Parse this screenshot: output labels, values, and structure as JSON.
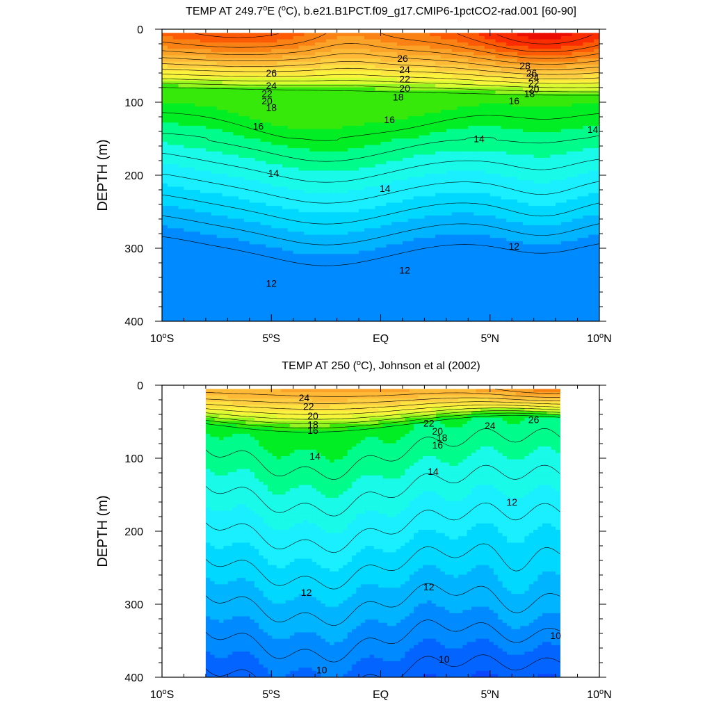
{
  "chart_data": [
    {
      "type": "contour",
      "title_main": "TEMP AT 249.7",
      "title_deg": "o",
      "title_mid": "E (",
      "title_unit_deg": "o",
      "title_rest": "C), b.e21.B1PCT.f09_g17.CMIP6-1pctCO2-rad.001 [60-90]",
      "ylabel": "DEPTH (m)",
      "xlabel": "",
      "xlim": [
        -10,
        10
      ],
      "ylim": [
        0,
        400
      ],
      "y_reversed": true,
      "x_ticks": [
        {
          "value": -10,
          "num": "10",
          "sup": "o",
          "hemi": "S"
        },
        {
          "value": -5,
          "num": "5",
          "sup": "o",
          "hemi": "S"
        },
        {
          "value": 0,
          "num": "EQ",
          "sup": "",
          "hemi": ""
        },
        {
          "value": 5,
          "num": "5",
          "sup": "o",
          "hemi": "N"
        },
        {
          "value": 10,
          "num": "10",
          "sup": "o",
          "hemi": "N"
        }
      ],
      "y_ticks": [
        "0",
        "100",
        "200",
        "300",
        "400"
      ],
      "data_xlim": [
        -10,
        10
      ],
      "data_ylim": [
        5,
        400
      ],
      "contour_labels": [
        {
          "text": "26",
          "x": -5.0,
          "y": 60
        },
        {
          "text": "24",
          "x": -5.0,
          "y": 77
        },
        {
          "text": "22",
          "x": -5.2,
          "y": 88
        },
        {
          "text": "20",
          "x": -5.2,
          "y": 98
        },
        {
          "text": "18",
          "x": -5.0,
          "y": 107
        },
        {
          "text": "16",
          "x": -5.6,
          "y": 133
        },
        {
          "text": "14",
          "x": -4.9,
          "y": 197
        },
        {
          "text": "14",
          "x": 0.2,
          "y": 218
        },
        {
          "text": "14",
          "x": 4.5,
          "y": 150
        },
        {
          "text": "14",
          "x": 9.7,
          "y": 137
        },
        {
          "text": "16",
          "x": 0.4,
          "y": 124
        },
        {
          "text": "18",
          "x": 0.8,
          "y": 93
        },
        {
          "text": "20",
          "x": 1.1,
          "y": 81
        },
        {
          "text": "22",
          "x": 1.1,
          "y": 68
        },
        {
          "text": "24",
          "x": 1.1,
          "y": 55
        },
        {
          "text": "26",
          "x": 1.0,
          "y": 40
        },
        {
          "text": "28",
          "x": 6.6,
          "y": 50
        },
        {
          "text": "26",
          "x": 6.9,
          "y": 60
        },
        {
          "text": "24",
          "x": 7.0,
          "y": 66
        },
        {
          "text": "22",
          "x": 7.0,
          "y": 74
        },
        {
          "text": "20",
          "x": 7.0,
          "y": 82
        },
        {
          "text": "18",
          "x": 6.8,
          "y": 88
        },
        {
          "text": "16",
          "x": 6.1,
          "y": 98
        },
        {
          "text": "12",
          "x": -5.0,
          "y": 348
        },
        {
          "text": "12",
          "x": 1.1,
          "y": 330
        },
        {
          "text": "12",
          "x": 6.1,
          "y": 297
        }
      ]
    },
    {
      "type": "contour",
      "title_main": "TEMP AT 250 (",
      "title_deg": "o",
      "title_rest": "C), Johnson et al (2002)",
      "ylabel": "DEPTH (m)",
      "xlabel": "",
      "xlim": [
        -10,
        10
      ],
      "ylim": [
        0,
        400
      ],
      "y_reversed": true,
      "x_ticks": [
        {
          "value": -10,
          "num": "10",
          "sup": "o",
          "hemi": "S"
        },
        {
          "value": -5,
          "num": "5",
          "sup": "o",
          "hemi": "S"
        },
        {
          "value": 0,
          "num": "EQ",
          "sup": "",
          "hemi": ""
        },
        {
          "value": 5,
          "num": "5",
          "sup": "o",
          "hemi": "N"
        },
        {
          "value": 10,
          "num": "10",
          "sup": "o",
          "hemi": "N"
        }
      ],
      "y_ticks": [
        "0",
        "100",
        "200",
        "300",
        "400"
      ],
      "data_xlim": [
        -8,
        8.2
      ],
      "data_ylim": [
        5,
        400
      ],
      "contour_labels": [
        {
          "text": "24",
          "x": -3.5,
          "y": 17
        },
        {
          "text": "22",
          "x": -3.3,
          "y": 29
        },
        {
          "text": "20",
          "x": -3.1,
          "y": 42
        },
        {
          "text": "18",
          "x": -3.1,
          "y": 54
        },
        {
          "text": "16",
          "x": -3.1,
          "y": 62
        },
        {
          "text": "14",
          "x": -3.0,
          "y": 97
        },
        {
          "text": "22",
          "x": 2.2,
          "y": 52
        },
        {
          "text": "20",
          "x": 2.6,
          "y": 63
        },
        {
          "text": "18",
          "x": 2.8,
          "y": 72
        },
        {
          "text": "16",
          "x": 2.6,
          "y": 82
        },
        {
          "text": "24",
          "x": 5.0,
          "y": 55
        },
        {
          "text": "26",
          "x": 7.0,
          "y": 47
        },
        {
          "text": "14",
          "x": 2.4,
          "y": 118
        },
        {
          "text": "12",
          "x": 6.0,
          "y": 160
        },
        {
          "text": "12",
          "x": -3.4,
          "y": 284
        },
        {
          "text": "12",
          "x": 2.2,
          "y": 276
        },
        {
          "text": "10",
          "x": 2.9,
          "y": 375
        },
        {
          "text": "10",
          "x": -2.7,
          "y": 390
        },
        {
          "text": "10",
          "x": 8.0,
          "y": 343
        }
      ]
    }
  ]
}
